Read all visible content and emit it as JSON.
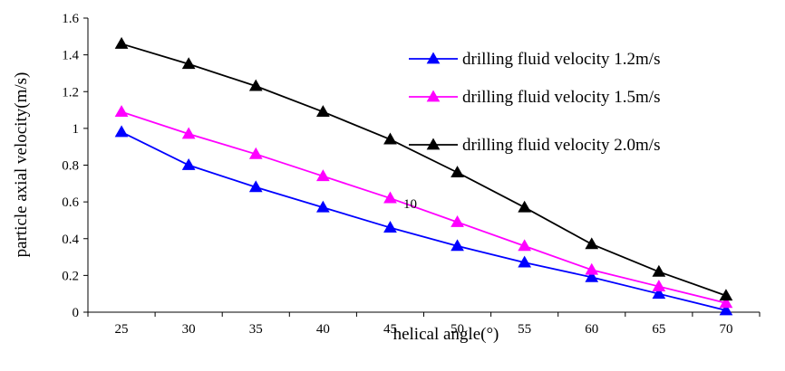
{
  "chart_data": {
    "type": "line",
    "title": "",
    "xlabel": "helical angle(°)",
    "ylabel": "particle axial velocity(m/s)",
    "x": [
      25,
      30,
      35,
      40,
      45,
      50,
      55,
      60,
      65,
      70
    ],
    "x_tick_labels": [
      "25",
      "30",
      "35",
      "40",
      "45",
      "50",
      "55",
      "60",
      "65",
      "70"
    ],
    "ylim": [
      0,
      1.6
    ],
    "y_tick_labels": [
      "0",
      "0.2",
      "0.4",
      "0.6",
      "0.8",
      "1",
      "1.2",
      "1.4",
      "1.6"
    ],
    "grid": false,
    "legend_position": "right",
    "annotation": "10",
    "series": [
      {
        "name": "drilling fluid velocity 1.2m/s",
        "color": "#0000ff",
        "marker": "triangle",
        "values": [
          0.98,
          0.8,
          0.68,
          0.57,
          0.46,
          0.36,
          0.27,
          0.19,
          0.1,
          0.01
        ]
      },
      {
        "name": "drilling fluid velocity 1.5m/s",
        "color": "#ff00ff",
        "marker": "triangle",
        "values": [
          1.09,
          0.97,
          0.86,
          0.74,
          0.62,
          0.49,
          0.36,
          0.23,
          0.14,
          0.05
        ]
      },
      {
        "name": "drilling fluid velocity 2.0m/s",
        "color": "#000000",
        "marker": "triangle",
        "values": [
          1.46,
          1.35,
          1.23,
          1.09,
          0.94,
          0.76,
          0.57,
          0.37,
          0.22,
          0.09
        ]
      }
    ]
  }
}
